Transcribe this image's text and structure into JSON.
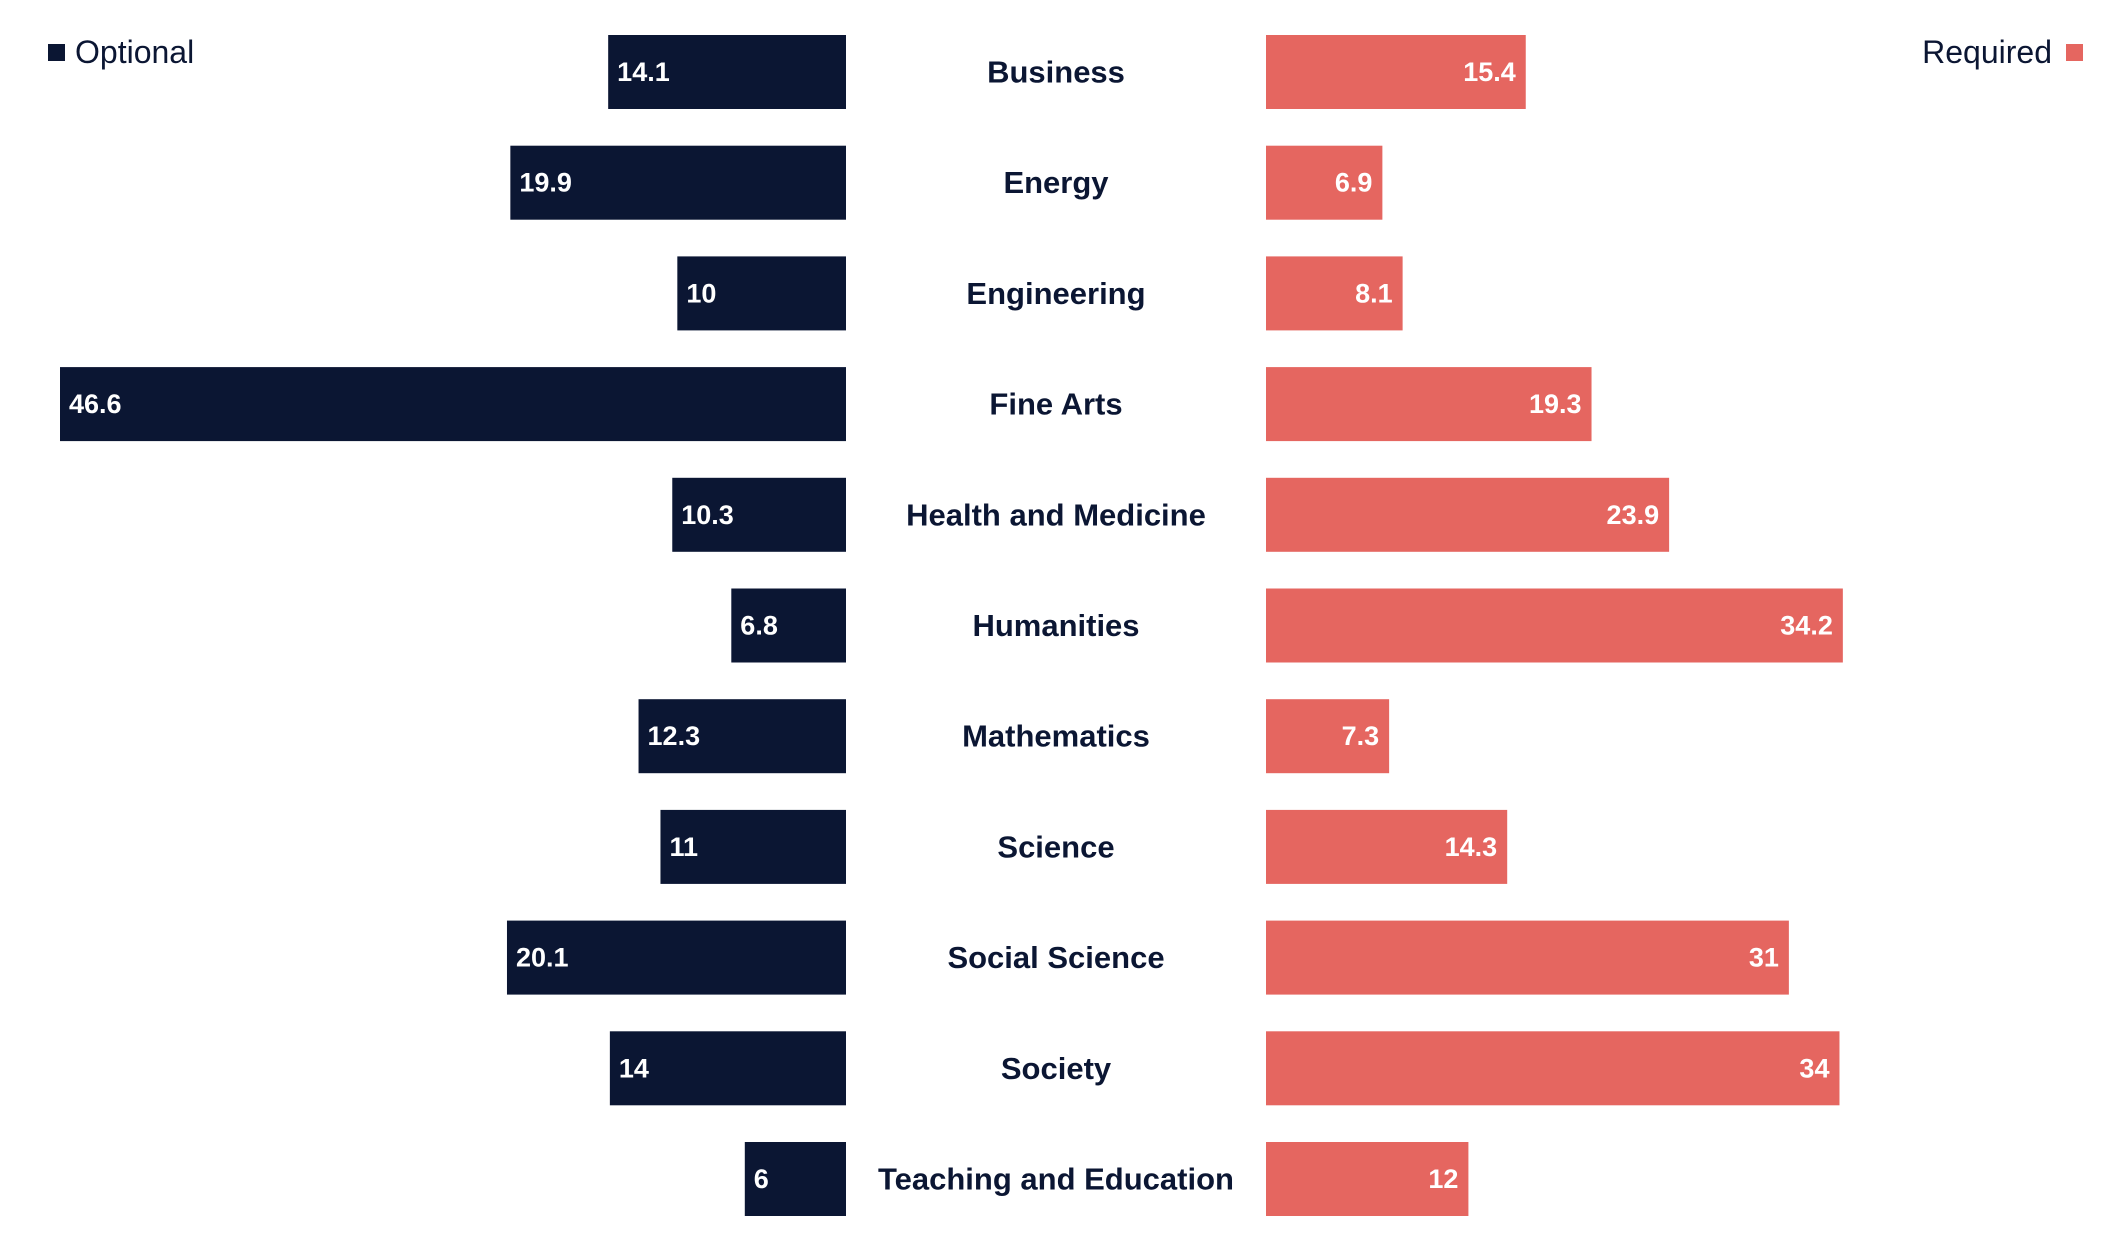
{
  "colors": {
    "optional": "#0b1633",
    "required": "#e56660",
    "category_text": "#0b1633",
    "bar_text": "#ffffff"
  },
  "legend": {
    "optional_label": "Optional",
    "required_label": "Required"
  },
  "chart_data": {
    "type": "bar",
    "orientation": "horizontal-diverging",
    "categories": [
      "Business",
      "Energy",
      "Engineering",
      "Fine Arts",
      "Health and Medicine",
      "Humanities",
      "Mathematics",
      "Science",
      "Social Science",
      "Society",
      "Teaching and Education"
    ],
    "series": [
      {
        "name": "Optional",
        "side": "left",
        "values": [
          14.1,
          19.9,
          10,
          46.6,
          10.3,
          6.8,
          12.3,
          11,
          20.1,
          14,
          6
        ]
      },
      {
        "name": "Required",
        "side": "right",
        "values": [
          15.4,
          6.9,
          8.1,
          19.3,
          23.9,
          34.2,
          7.3,
          14.3,
          31,
          34,
          12
        ]
      }
    ],
    "legend_position": "top-left and top-right",
    "grid": false,
    "xlim": [
      0,
      46.6
    ]
  }
}
